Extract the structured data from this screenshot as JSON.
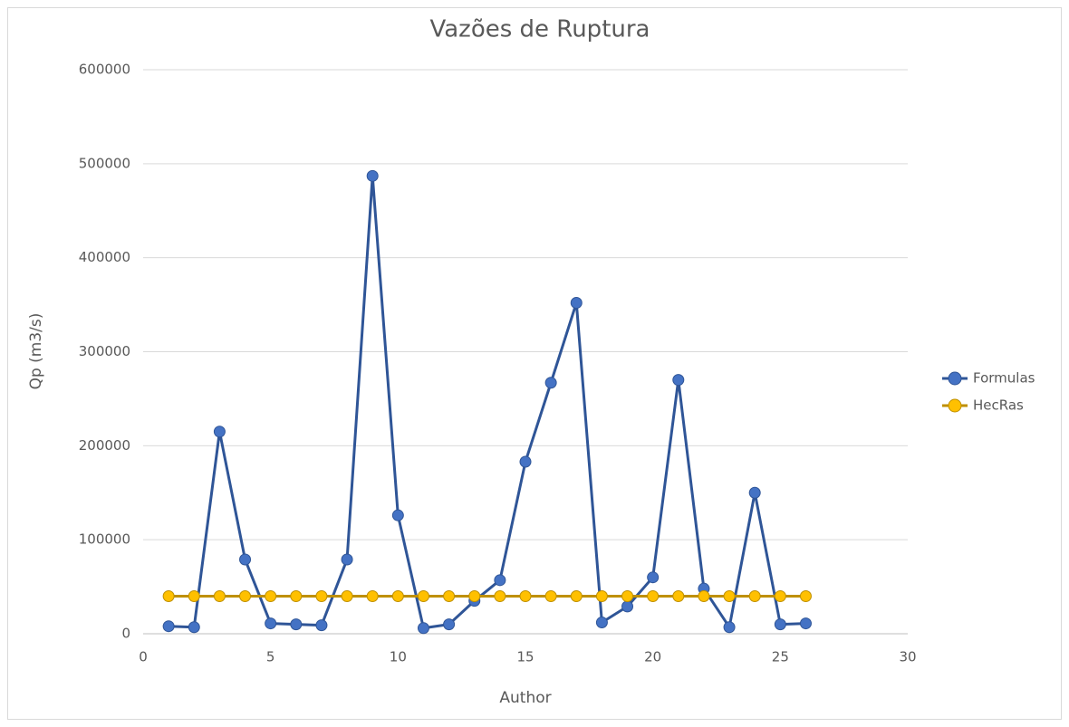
{
  "chart_data": {
    "type": "line",
    "title": "Vazões de Ruptura",
    "x_label": "Author",
    "y_label": "Qp (m3/s)",
    "x": [
      1,
      2,
      3,
      4,
      5,
      6,
      7,
      8,
      9,
      10,
      11,
      12,
      13,
      14,
      15,
      16,
      17,
      18,
      19,
      20,
      21,
      22,
      23,
      24,
      25,
      26
    ],
    "series": [
      {
        "name": "Formulas",
        "color": "#2f5597",
        "marker_color": "#4472c4",
        "values": [
          8000,
          7000,
          215000,
          79000,
          11000,
          10000,
          9000,
          79000,
          487000,
          126000,
          6000,
          10000,
          35000,
          57000,
          183000,
          267000,
          352000,
          12000,
          29000,
          60000,
          270000,
          48000,
          7000,
          150000,
          10000,
          11000
        ]
      },
      {
        "name": "HecRas",
        "color": "#bf9000",
        "marker_color": "#ffc000",
        "values": [
          40000,
          40000,
          40000,
          40000,
          40000,
          40000,
          40000,
          40000,
          40000,
          40000,
          40000,
          40000,
          40000,
          40000,
          40000,
          40000,
          40000,
          40000,
          40000,
          40000,
          40000,
          40000,
          40000,
          40000,
          40000,
          40000
        ]
      }
    ],
    "xlim": [
      0,
      30
    ],
    "xticks": [
      0,
      5,
      10,
      15,
      20,
      25,
      30
    ],
    "ylim": [
      0,
      600000
    ],
    "yticks": [
      0,
      100000,
      200000,
      300000,
      400000,
      500000,
      600000
    ],
    "grid": true,
    "legend": "right"
  }
}
